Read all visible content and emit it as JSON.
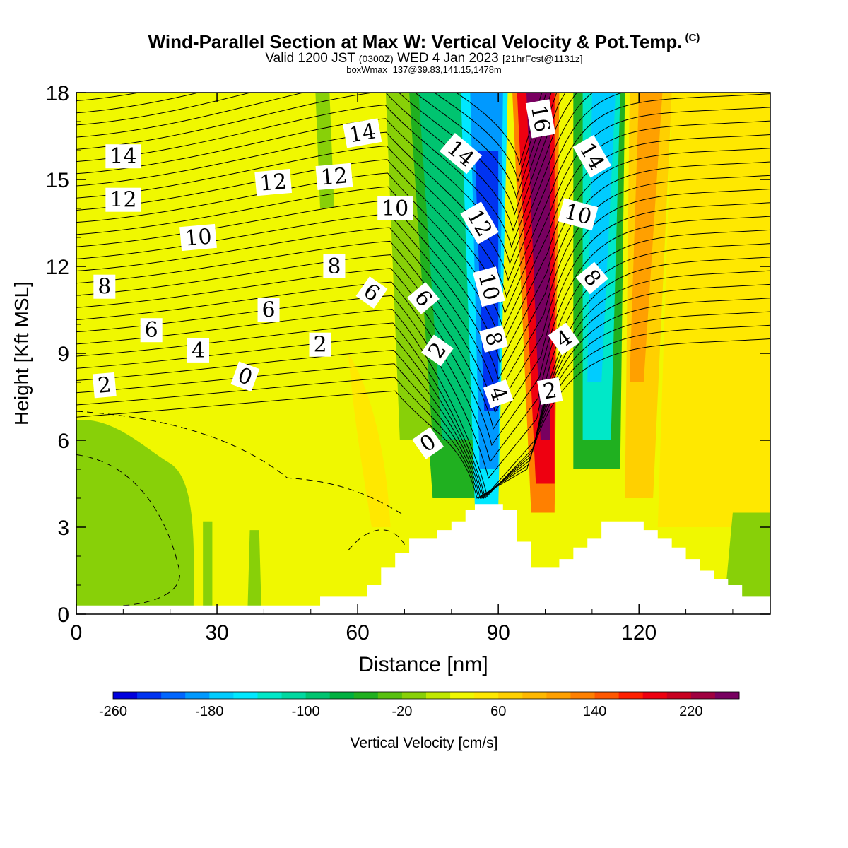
{
  "title": {
    "main": "Wind-Parallel Section at Max W: Vertical Velocity & Pot.Temp.",
    "mark": "(C)",
    "sub_valid": "Valid 1200 JST",
    "sub_zulu": "(0300Z)",
    "sub_date": "WED 4 Jan 2023",
    "sub_fcst": "[21hrFcst@1131z]",
    "sub2": "boxWmax=137@39.83,141.15,1478m"
  },
  "chart_data": {
    "type": "heatmap",
    "description_fields": "filled contours of vertical velocity with overlaid potential temperature contours (degC), terrain masked in white",
    "xlabel": "Distance [nm]",
    "ylabel": "Height [Kft MSL]",
    "xlim": [
      0,
      148
    ],
    "ylim": [
      0,
      18
    ],
    "x_ticks": [
      0,
      30,
      60,
      90,
      120
    ],
    "y_ticks": [
      0,
      3,
      6,
      9,
      12,
      15,
      18
    ],
    "colorbar": {
      "label": "Vertical Velocity [cm/s]",
      "min": -260,
      "max": 260,
      "step": 20,
      "tick_labels": [
        -260,
        -180,
        -100,
        -20,
        60,
        140,
        220
      ],
      "colors": [
        "#0000dd",
        "#0033f0",
        "#0066ff",
        "#0099ff",
        "#00ccff",
        "#00e8ff",
        "#00e8c8",
        "#00d8a0",
        "#00c470",
        "#00b040",
        "#20b020",
        "#58c010",
        "#88d008",
        "#c0e800",
        "#f0f800",
        "#ffe800",
        "#ffd000",
        "#ffb800",
        "#ffa000",
        "#ff8000",
        "#ff5800",
        "#ff2000",
        "#ee0010",
        "#c80020",
        "#a00040",
        "#780060"
      ]
    },
    "velocity_bands": [
      {
        "x": [
          0,
          55
        ],
        "w": -20,
        "note": "broad weak ascent region"
      },
      {
        "x": [
          0,
          24
        ],
        "z": [
          0,
          6.7
        ],
        "w": -40
      },
      {
        "x": [
          72,
          85
        ],
        "w": -100
      },
      {
        "x": [
          86,
          95
        ],
        "w": -220
      },
      {
        "x": [
          96,
          104
        ],
        "w": 240
      },
      {
        "x": [
          106,
          116
        ],
        "w": -180
      },
      {
        "x": [
          118,
          124
        ],
        "w": 100
      }
    ],
    "terrain_profile": {
      "x": [
        0,
        52,
        62,
        65,
        68,
        71,
        74,
        77,
        80,
        83,
        85,
        88,
        91,
        94,
        97,
        100,
        103,
        106,
        109,
        112,
        115,
        118,
        121,
        124,
        127,
        130,
        133,
        136,
        139,
        142,
        145,
        148
      ],
      "z": [
        0.3,
        0.6,
        1.0,
        1.6,
        2.1,
        2.6,
        2.6,
        2.9,
        3.2,
        3.6,
        3.8,
        3.8,
        3.6,
        2.5,
        1.6,
        1.6,
        1.9,
        2.3,
        2.6,
        3.2,
        3.2,
        3.2,
        2.9,
        2.6,
        2.3,
        1.9,
        1.5,
        1.2,
        1.0,
        0.6,
        0.6,
        0.6
      ]
    },
    "theta_contour_labels": [
      {
        "value": 14,
        "x": 10,
        "z": 15.8,
        "rot": 0
      },
      {
        "value": 12,
        "x": 10,
        "z": 14.3,
        "rot": 0
      },
      {
        "value": 10,
        "x": 26,
        "z": 13.0,
        "rot": -5
      },
      {
        "value": 8,
        "x": 6,
        "z": 11.3,
        "rot": 0
      },
      {
        "value": 6,
        "x": 16,
        "z": 9.8,
        "rot": 0
      },
      {
        "value": 4,
        "x": 26,
        "z": 9.1,
        "rot": 0
      },
      {
        "value": 2,
        "x": 6,
        "z": 7.9,
        "rot": -5
      },
      {
        "value": 0,
        "x": 36,
        "z": 8.2,
        "rot": 20
      },
      {
        "value": 12,
        "x": 42,
        "z": 14.9,
        "rot": -5
      },
      {
        "value": 12,
        "x": 55,
        "z": 15.1,
        "rot": -5
      },
      {
        "value": 14,
        "x": 61,
        "z": 16.6,
        "rot": -10
      },
      {
        "value": 10,
        "x": 68,
        "z": 14.0,
        "rot": 0
      },
      {
        "value": 8,
        "x": 55,
        "z": 12.0,
        "rot": 0
      },
      {
        "value": 6,
        "x": 63,
        "z": 11.1,
        "rot": 35
      },
      {
        "value": 2,
        "x": 52,
        "z": 9.3,
        "rot": 0
      },
      {
        "value": 6,
        "x": 41,
        "z": 10.5,
        "rot": 0
      },
      {
        "value": 6,
        "x": 74,
        "z": 10.9,
        "rot": 50
      },
      {
        "value": 2,
        "x": 77,
        "z": 9.1,
        "rot": -55
      },
      {
        "value": 0,
        "x": 75,
        "z": 5.9,
        "rot": -35
      },
      {
        "value": 14,
        "x": 82,
        "z": 15.9,
        "rot": 40
      },
      {
        "value": 12,
        "x": 86,
        "z": 13.5,
        "rot": 60
      },
      {
        "value": 10,
        "x": 88,
        "z": 11.3,
        "rot": 75
      },
      {
        "value": 8,
        "x": 89,
        "z": 9.5,
        "rot": 75
      },
      {
        "value": 4,
        "x": 90,
        "z": 7.6,
        "rot": 70
      },
      {
        "value": 16,
        "x": 99,
        "z": 17.1,
        "rot": 80
      },
      {
        "value": 10,
        "x": 107,
        "z": 13.8,
        "rot": 15
      },
      {
        "value": 8,
        "x": 110,
        "z": 11.6,
        "rot": 50
      },
      {
        "value": 4,
        "x": 104,
        "z": 9.5,
        "rot": -35
      },
      {
        "value": 2,
        "x": 101,
        "z": 7.7,
        "rot": -10
      },
      {
        "value": 14,
        "x": 110,
        "z": 15.8,
        "rot": 60
      }
    ]
  }
}
